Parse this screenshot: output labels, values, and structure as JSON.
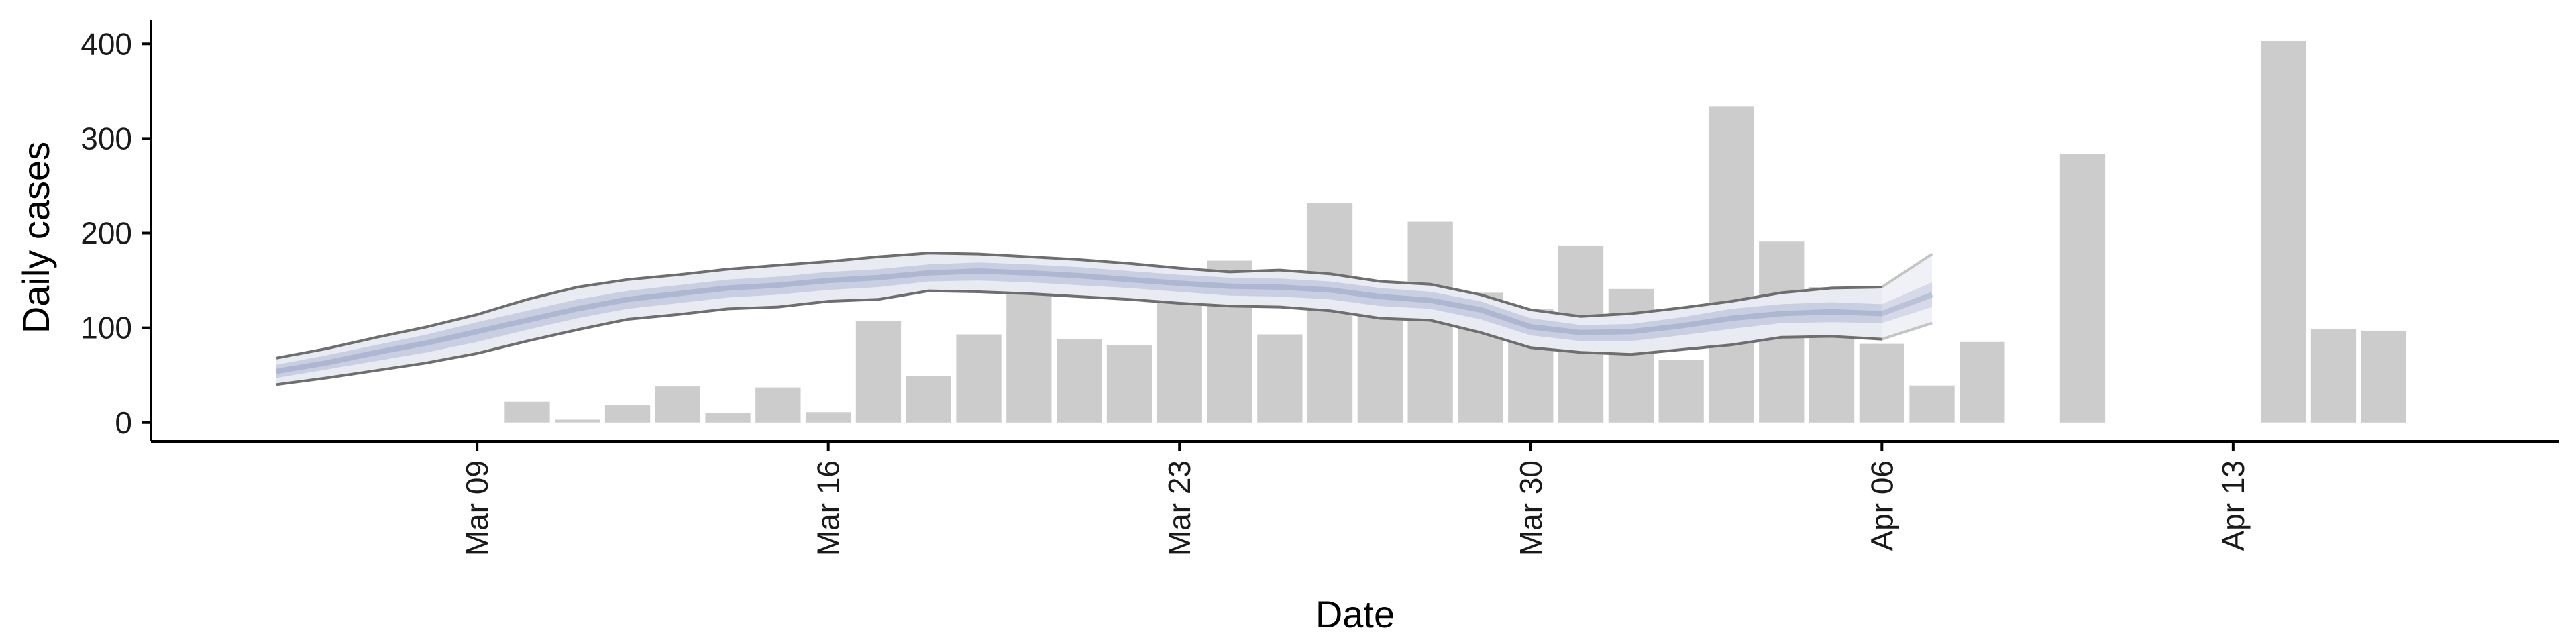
{
  "chart_data": {
    "type": "bar",
    "title": "",
    "xlabel": "Date",
    "ylabel": "Daily cases",
    "ylim": [
      -20,
      425
    ],
    "xlim": [
      "2020-03-02T12:00",
      "2020-04-19T12:00"
    ],
    "x_ticks": [
      "Mar 09",
      "Mar 16",
      "Mar 23",
      "Mar 30",
      "Apr 06",
      "Apr 13"
    ],
    "x_tick_dates": [
      "2020-03-09",
      "2020-03-16",
      "2020-03-23",
      "2020-03-30",
      "2020-04-06",
      "2020-04-13"
    ],
    "y_ticks": [
      0,
      100,
      200,
      300,
      400
    ],
    "grid": false,
    "legend": "none",
    "colors": {
      "bars": "#cccccc",
      "band_outer": "#e9ebf3",
      "band_inner": "#c9cfe1",
      "median_line": "#aeb7d1",
      "band_outline": "#6e6e6e",
      "extension_outline": "#c4c4c4",
      "axis": "#000000"
    },
    "bars": {
      "dates": [
        "2020-03-10",
        "2020-03-11",
        "2020-03-12",
        "2020-03-13",
        "2020-03-14",
        "2020-03-15",
        "2020-03-16",
        "2020-03-17",
        "2020-03-18",
        "2020-03-19",
        "2020-03-20",
        "2020-03-21",
        "2020-03-22",
        "2020-03-23",
        "2020-03-24",
        "2020-03-25",
        "2020-03-26",
        "2020-03-27",
        "2020-03-28",
        "2020-03-29",
        "2020-03-30",
        "2020-03-31",
        "2020-04-01",
        "2020-04-02",
        "2020-04-03",
        "2020-04-04",
        "2020-04-05",
        "2020-04-06",
        "2020-04-07",
        "2020-04-08",
        "2020-04-10",
        "2020-04-14",
        "2020-04-15",
        "2020-04-16"
      ],
      "values": [
        22,
        3,
        19,
        38,
        10,
        37,
        11,
        107,
        49,
        93,
        175,
        88,
        82,
        135,
        171,
        93,
        232,
        149,
        212,
        137,
        120,
        187,
        141,
        66,
        334,
        191,
        143,
        83,
        39,
        85,
        284,
        403,
        99,
        97
      ]
    },
    "series": [
      {
        "dates": [
          "2020-03-05",
          "2020-03-06",
          "2020-03-07",
          "2020-03-08",
          "2020-03-09",
          "2020-03-10",
          "2020-03-11",
          "2020-03-12",
          "2020-03-13",
          "2020-03-14",
          "2020-03-15",
          "2020-03-16",
          "2020-03-17",
          "2020-03-18",
          "2020-03-19",
          "2020-03-20",
          "2020-03-21",
          "2020-03-22",
          "2020-03-23",
          "2020-03-24",
          "2020-03-25",
          "2020-03-26",
          "2020-03-27",
          "2020-03-28",
          "2020-03-29",
          "2020-03-30",
          "2020-03-31",
          "2020-04-01",
          "2020-04-02",
          "2020-04-03",
          "2020-04-04",
          "2020-04-05",
          "2020-04-06"
        ],
        "lower_90": [
          40,
          47,
          55,
          63,
          73,
          86,
          98,
          109,
          114,
          120,
          122,
          128,
          130,
          139,
          138,
          136,
          133,
          130,
          126,
          123,
          122,
          118,
          110,
          108,
          95,
          79,
          74,
          72,
          77,
          82,
          90,
          91,
          88
        ],
        "lower_50": [
          47,
          56,
          65,
          74,
          85,
          98,
          110,
          120,
          126,
          132,
          135,
          140,
          143,
          149,
          150,
          148,
          145,
          142,
          138,
          134,
          133,
          130,
          123,
          120,
          109,
          92,
          86,
          86,
          92,
          99,
          105,
          106,
          105
        ],
        "median": [
          54,
          63,
          74,
          84,
          96,
          108,
          120,
          130,
          136,
          142,
          145,
          150,
          153,
          158,
          160,
          158,
          155,
          151,
          147,
          144,
          143,
          140,
          133,
          129,
          119,
          101,
          95,
          96,
          102,
          110,
          115,
          117,
          115
        ],
        "upper_50": [
          61,
          71,
          82,
          93,
          106,
          118,
          130,
          139,
          145,
          151,
          154,
          159,
          162,
          167,
          169,
          167,
          164,
          160,
          156,
          153,
          152,
          149,
          142,
          138,
          128,
          110,
          103,
          104,
          111,
          120,
          125,
          127,
          125
        ],
        "upper_90": [
          68,
          78,
          90,
          101,
          114,
          130,
          143,
          151,
          156,
          162,
          166,
          170,
          175,
          179,
          178,
          175,
          172,
          168,
          163,
          159,
          161,
          157,
          149,
          146,
          135,
          119,
          112,
          115,
          121,
          128,
          137,
          142,
          143
        ]
      },
      {
        "dates": [
          "2020-04-06",
          "2020-04-07"
        ],
        "lower_90": [
          88,
          105
        ],
        "lower_50": [
          105,
          122
        ],
        "median": [
          115,
          135
        ],
        "upper_50": [
          125,
          148
        ],
        "upper_90": [
          143,
          178
        ]
      }
    ]
  }
}
